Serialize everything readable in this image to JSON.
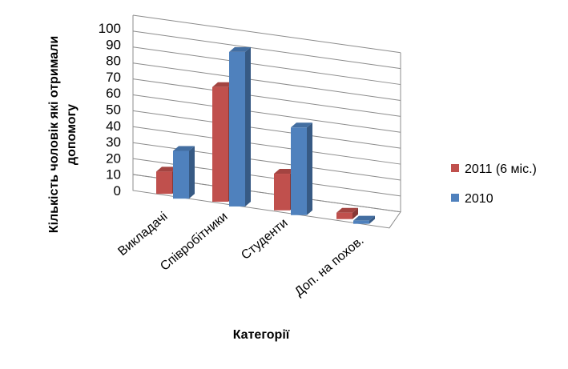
{
  "chart_data": {
    "type": "bar",
    "style": "3d-clustered-column",
    "categories": [
      "Викладачі",
      "Співробітники",
      "Студенти",
      "Доп. на похов."
    ],
    "series": [
      {
        "name": "2011 (6 міс.)",
        "values": [
          14,
          72,
          23,
          4
        ],
        "color": "#c0504d"
      },
      {
        "name": "2010",
        "values": [
          30,
          97,
          55,
          2
        ],
        "color": "#4f81bd"
      }
    ],
    "yticks": [
      "0",
      "10",
      "20",
      "30",
      "40",
      "50",
      "60",
      "70",
      "80",
      "90",
      "100"
    ],
    "ylim": [
      0,
      100
    ],
    "ylabel_line1": "Кількість чоловік які отримали",
    "ylabel_line2": "допомогу",
    "xlabel": "Категорії",
    "grid": true,
    "legend_position": "right"
  }
}
